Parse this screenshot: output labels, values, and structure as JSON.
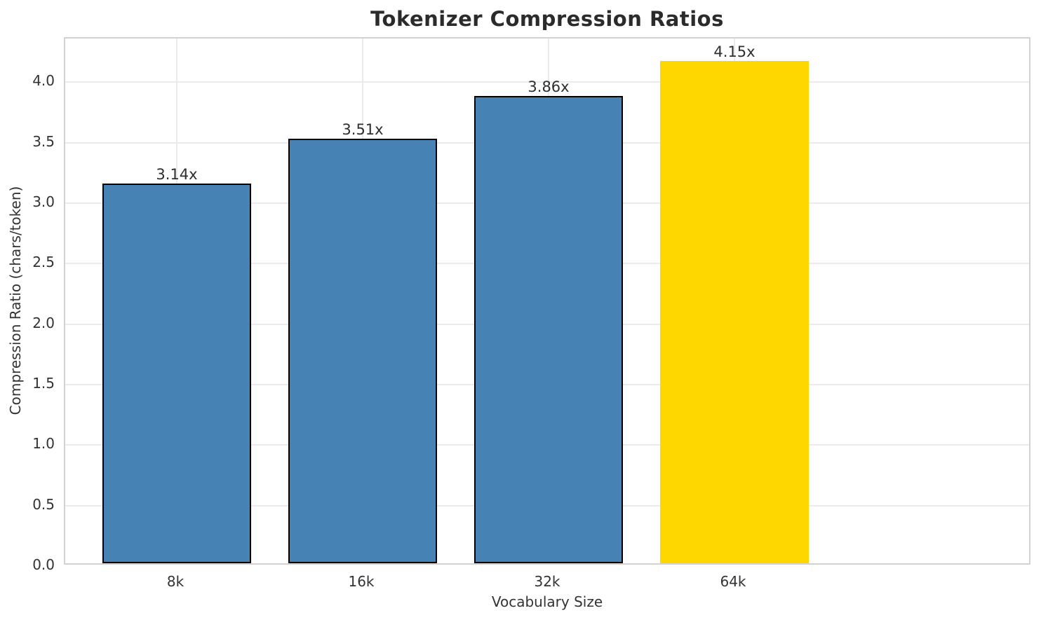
{
  "chart_data": {
    "type": "bar",
    "title": "Tokenizer Compression Ratios",
    "xlabel": "Vocabulary Size",
    "ylabel": "Compression Ratio (chars/token)",
    "categories": [
      "8k",
      "16k",
      "32k",
      "64k"
    ],
    "values": [
      3.14,
      3.51,
      3.86,
      4.15
    ],
    "bar_labels": [
      "3.14x",
      "3.51x",
      "3.86x",
      "4.15x"
    ],
    "bar_colors": [
      "#4682B4",
      "#4682B4",
      "#4682B4",
      "#FFD700"
    ],
    "bar_edge_colors": [
      "#000000",
      "#000000",
      "#000000",
      "none"
    ],
    "ylim": [
      0,
      4.36
    ],
    "yticks": [
      0.0,
      0.5,
      1.0,
      1.5,
      2.0,
      2.5,
      3.0,
      3.5,
      4.0
    ],
    "ytick_labels": [
      "0.0",
      "0.5",
      "1.0",
      "1.5",
      "2.0",
      "2.5",
      "3.0",
      "3.5",
      "4.0"
    ],
    "grid": true,
    "legend_position": "none",
    "accent_colors": {
      "default_bar": "#4682B4",
      "highlight_bar": "#FFD700",
      "grid": "#ebebeb",
      "spine": "#d2d2d2",
      "text": "#333333"
    }
  }
}
